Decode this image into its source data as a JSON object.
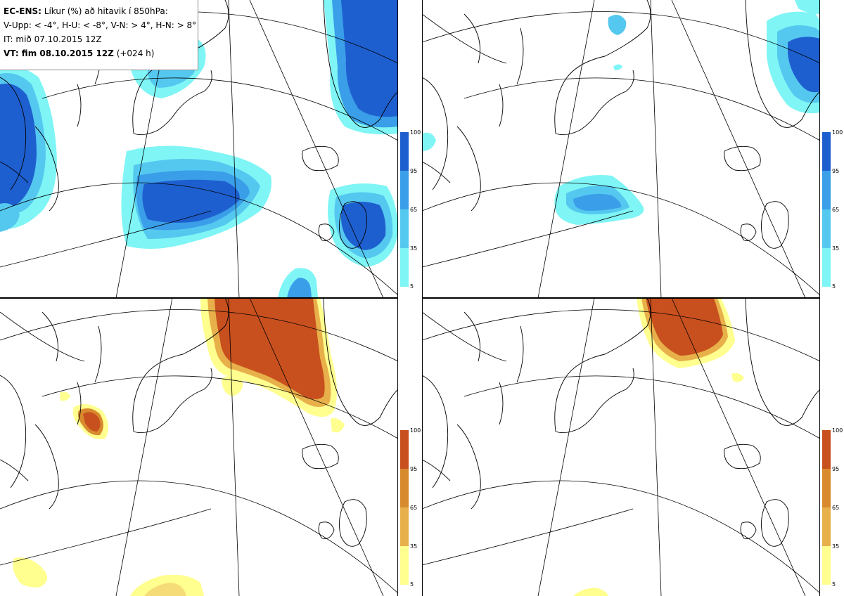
{
  "info": {
    "title_bold": "EC-ENS:",
    "title_rest": " Líkur (%) að hitavik í 850hPa:",
    "criteria": "V-Upp: < -4°, H-U: < -8°, V-N: > 4°, H-N: > 8°",
    "init_time": "IT: mið 07.10.2015 12Z",
    "valid_bold": "VT: fim 08.10.2015 12Z",
    "valid_rest": " (+024 h)"
  },
  "panels": [
    {
      "id": "V-Upp",
      "description": "probability anomaly < -4°",
      "scheme": "blue"
    },
    {
      "id": "H-U",
      "description": "probability anomaly < -8°",
      "scheme": "blue"
    },
    {
      "id": "V-N",
      "description": "probability anomaly > 4°",
      "scheme": "orange"
    },
    {
      "id": "H-N",
      "description": "probability anomaly > 8°",
      "scheme": "orange"
    }
  ],
  "legend_ticks": [
    "100",
    "95",
    "65",
    "35",
    "5"
  ],
  "colors": {
    "blue": [
      "#7ff5f5",
      "#55c8f0",
      "#3a9ee8",
      "#2a78dc",
      "#1e5fcf"
    ],
    "orange": [
      "#ffff90",
      "#f5dc78",
      "#e8b04a",
      "#d88a2e",
      "#c8501e"
    ],
    "coast": "#000000",
    "grid": "#000000"
  }
}
